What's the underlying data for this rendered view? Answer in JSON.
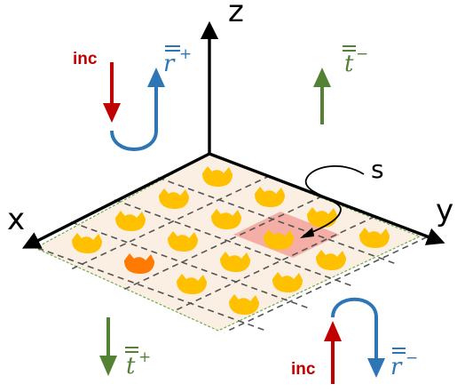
{
  "axes": {
    "x": "x",
    "y": "y",
    "z": "z"
  },
  "labels": {
    "inc_top": "inc",
    "inc_bottom": "inc",
    "r_plus": "r",
    "r_plus_sup": "+",
    "r_minus": "r",
    "r_minus_sup": "−",
    "t_plus": "t",
    "t_plus_sup": "+",
    "t_minus": "t",
    "t_minus_sup": "−",
    "unit_cell": "s"
  },
  "colors": {
    "incident": "#c00000",
    "reflected": "#2e75b6",
    "transmitted": "#548235",
    "slab_fill": "#fbeee2",
    "slab_edge": "#70ad47",
    "element": "#ffc000",
    "highlight_cell": "#f4a6a0",
    "highlight_element": "#ff7a00"
  },
  "array": {
    "rows": 4,
    "columns": 4,
    "highlighted_cell": [
      3,
      1
    ]
  }
}
